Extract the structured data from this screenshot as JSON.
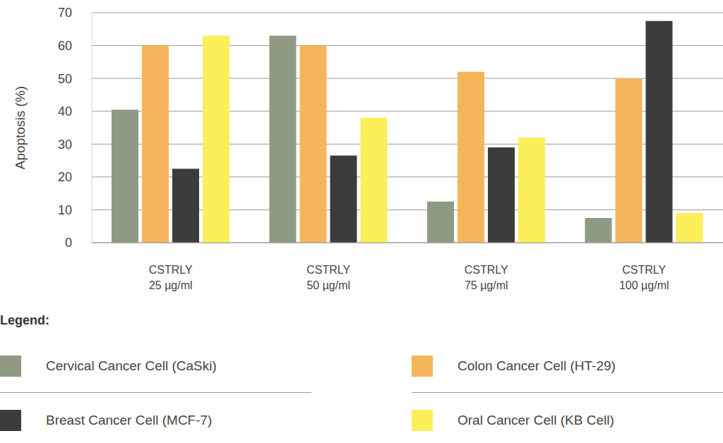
{
  "chart_data": {
    "type": "bar",
    "y_label": "Apoptosis (%)",
    "categories": [
      "CSTRLY 25 µg/ml",
      "CSTRLY 50 µg/ml",
      "CSTRLY 75 µg/ml",
      "CSTRLY 100 µg/ml"
    ],
    "series": [
      {
        "name": "Cervical Cancer Cell (CaSki)",
        "color": "#8e9a83",
        "values": [
          40.5,
          63,
          12.5,
          7.5
        ]
      },
      {
        "name": "Colon Cancer Cell (HT-29)",
        "color": "#f5b55a",
        "values": [
          60,
          60,
          52,
          50
        ]
      },
      {
        "name": "Breast Cancer Cell (MCF-7)",
        "color": "#3c3c3c",
        "values": [
          22.5,
          26.5,
          29,
          67.5
        ]
      },
      {
        "name": "Oral Cancer Cell (KB Cell)",
        "color": "#fbef5a",
        "values": [
          63,
          38,
          32,
          9
        ]
      }
    ],
    "ylim": [
      0,
      70
    ],
    "yticks": [
      0,
      10,
      20,
      30,
      40,
      50,
      60,
      70
    ],
    "grid": true,
    "legend": "bottom",
    "legend_title": "Legend:"
  }
}
